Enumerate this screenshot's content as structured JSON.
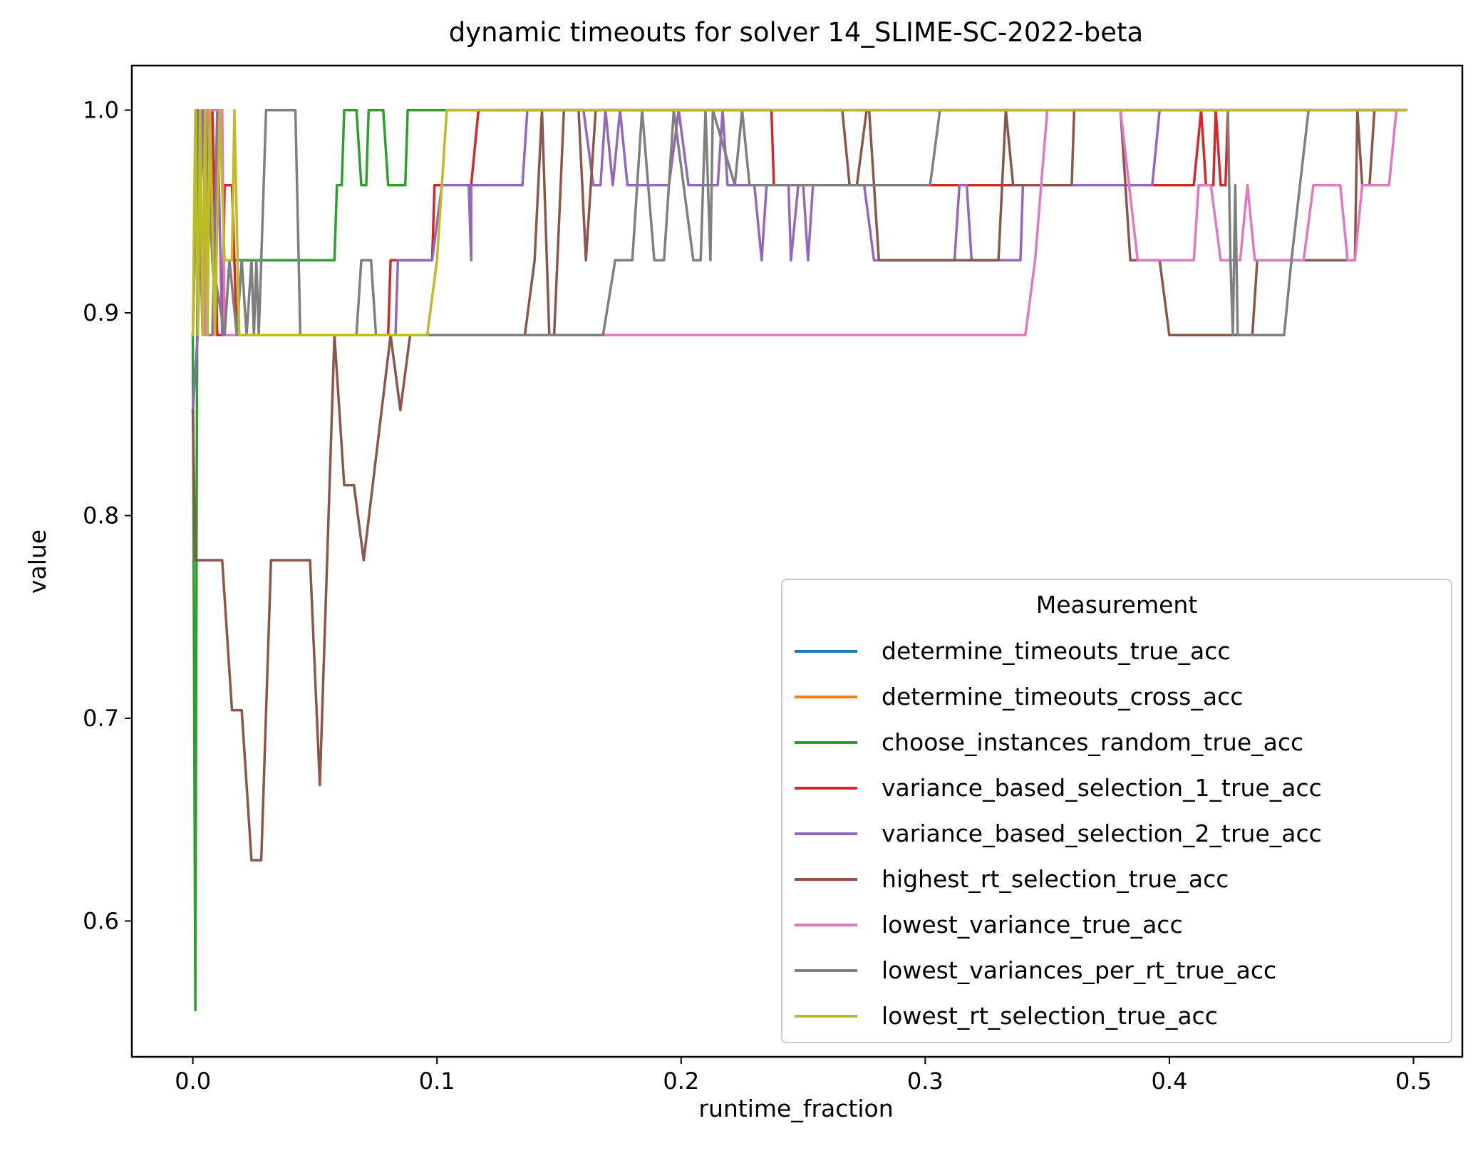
{
  "chart_data": {
    "type": "line",
    "title": "dynamic timeouts for solver 14_SLIME-SC-2022-beta",
    "xlabel": "runtime_fraction",
    "ylabel": "value",
    "xlim": [
      -0.025,
      0.52
    ],
    "ylim": [
      0.533,
      1.022
    ],
    "xticks": [
      0.0,
      0.1,
      0.2,
      0.3,
      0.4,
      0.5
    ],
    "xtick_labels": [
      "0.0",
      "0.1",
      "0.2",
      "0.3",
      "0.4",
      "0.5"
    ],
    "yticks": [
      0.6,
      0.7,
      0.8,
      0.9,
      1.0
    ],
    "ytick_labels": [
      "0.6",
      "0.7",
      "0.8",
      "0.9",
      "1.0"
    ],
    "legend": {
      "title": "Measurement",
      "position": "lower-right"
    },
    "grid": false,
    "series": [
      {
        "name": "determine_timeouts_true_acc",
        "color": "#1f77b4",
        "points": []
      },
      {
        "name": "determine_timeouts_cross_acc",
        "color": "#ff7f0e",
        "points": []
      },
      {
        "name": "choose_instances_random_true_acc",
        "color": "#2ca02c",
        "points": [
          [
            0,
            0.889
          ],
          [
            0.001,
            0.556
          ],
          [
            0.002,
            1.0
          ],
          [
            0.004,
            0.889
          ],
          [
            0.006,
            1.0
          ],
          [
            0.008,
            0.926
          ],
          [
            0.01,
            0.889
          ],
          [
            0.013,
            0.889
          ],
          [
            0.015,
            0.926
          ],
          [
            0.03,
            0.926
          ],
          [
            0.058,
            0.926
          ],
          [
            0.059,
            0.963
          ],
          [
            0.061,
            0.963
          ],
          [
            0.062,
            1.0
          ],
          [
            0.067,
            1.0
          ],
          [
            0.069,
            0.963
          ],
          [
            0.071,
            0.963
          ],
          [
            0.072,
            1.0
          ],
          [
            0.078,
            1.0
          ],
          [
            0.08,
            0.963
          ],
          [
            0.087,
            0.963
          ],
          [
            0.088,
            1.0
          ],
          [
            0.497,
            1.0
          ]
        ]
      },
      {
        "name": "variance_based_selection_1_true_acc",
        "color": "#d62728",
        "points": [
          [
            0,
            0.889
          ],
          [
            0.002,
            1.0
          ],
          [
            0.005,
            0.889
          ],
          [
            0.008,
            1.0
          ],
          [
            0.01,
            0.889
          ],
          [
            0.012,
            0.889
          ],
          [
            0.013,
            0.963
          ],
          [
            0.016,
            0.963
          ],
          [
            0.018,
            0.889
          ],
          [
            0.08,
            0.889
          ],
          [
            0.081,
            0.926
          ],
          [
            0.098,
            0.926
          ],
          [
            0.099,
            0.963
          ],
          [
            0.114,
            0.963
          ],
          [
            0.117,
            1.0
          ],
          [
            0.237,
            1.0
          ],
          [
            0.238,
            0.963
          ],
          [
            0.41,
            0.963
          ],
          [
            0.413,
            1.0
          ],
          [
            0.415,
            0.963
          ],
          [
            0.418,
            0.963
          ],
          [
            0.419,
            1.0
          ],
          [
            0.421,
            0.963
          ],
          [
            0.423,
            0.963
          ],
          [
            0.424,
            1.0
          ],
          [
            0.497,
            1.0
          ]
        ]
      },
      {
        "name": "variance_based_selection_2_true_acc",
        "color": "#9467bd",
        "points": [
          [
            0,
            0.852
          ],
          [
            0.002,
            0.889
          ],
          [
            0.004,
            1.0
          ],
          [
            0.006,
            0.889
          ],
          [
            0.008,
            0.889
          ],
          [
            0.01,
            1.0
          ],
          [
            0.012,
            0.889
          ],
          [
            0.083,
            0.889
          ],
          [
            0.084,
            0.926
          ],
          [
            0.098,
            0.926
          ],
          [
            0.102,
            0.963
          ],
          [
            0.113,
            0.963
          ],
          [
            0.114,
            0.926
          ],
          [
            0.114,
            0.963
          ],
          [
            0.135,
            0.963
          ],
          [
            0.137,
            1.0
          ],
          [
            0.16,
            1.0
          ],
          [
            0.164,
            0.963
          ],
          [
            0.167,
            0.963
          ],
          [
            0.169,
            1.0
          ],
          [
            0.172,
            0.963
          ],
          [
            0.175,
            1.0
          ],
          [
            0.178,
            0.963
          ],
          [
            0.195,
            0.963
          ],
          [
            0.199,
            1.0
          ],
          [
            0.203,
            0.963
          ],
          [
            0.215,
            0.963
          ],
          [
            0.217,
            1.0
          ],
          [
            0.219,
            0.963
          ],
          [
            0.23,
            0.963
          ],
          [
            0.233,
            0.926
          ],
          [
            0.235,
            0.963
          ],
          [
            0.244,
            0.963
          ],
          [
            0.245,
            0.926
          ],
          [
            0.248,
            0.963
          ],
          [
            0.25,
            0.963
          ],
          [
            0.252,
            0.926
          ],
          [
            0.254,
            0.963
          ],
          [
            0.275,
            0.963
          ],
          [
            0.279,
            0.926
          ],
          [
            0.312,
            0.926
          ],
          [
            0.314,
            0.963
          ],
          [
            0.317,
            0.963
          ],
          [
            0.319,
            0.926
          ],
          [
            0.339,
            0.926
          ],
          [
            0.34,
            0.963
          ],
          [
            0.393,
            0.963
          ],
          [
            0.396,
            1.0
          ],
          [
            0.497,
            1.0
          ]
        ]
      },
      {
        "name": "highest_rt_selection_true_acc",
        "color": "#8c564b",
        "points": [
          [
            0,
            0.852
          ],
          [
            0.001,
            0.778
          ],
          [
            0.012,
            0.778
          ],
          [
            0.016,
            0.704
          ],
          [
            0.02,
            0.704
          ],
          [
            0.024,
            0.63
          ],
          [
            0.028,
            0.63
          ],
          [
            0.032,
            0.778
          ],
          [
            0.048,
            0.778
          ],
          [
            0.052,
            0.667
          ],
          [
            0.058,
            0.889
          ],
          [
            0.062,
            0.815
          ],
          [
            0.066,
            0.815
          ],
          [
            0.07,
            0.778
          ],
          [
            0.081,
            0.889
          ],
          [
            0.085,
            0.852
          ],
          [
            0.089,
            0.889
          ],
          [
            0.136,
            0.889
          ],
          [
            0.14,
            0.926
          ],
          [
            0.143,
            1.0
          ],
          [
            0.146,
            0.889
          ],
          [
            0.148,
            0.889
          ],
          [
            0.152,
            1.0
          ],
          [
            0.158,
            1.0
          ],
          [
            0.161,
            0.926
          ],
          [
            0.165,
            1.0
          ],
          [
            0.266,
            1.0
          ],
          [
            0.269,
            0.963
          ],
          [
            0.272,
            0.963
          ],
          [
            0.276,
            1.0
          ],
          [
            0.277,
            1.0
          ],
          [
            0.281,
            0.926
          ],
          [
            0.33,
            0.926
          ],
          [
            0.333,
            1.0
          ],
          [
            0.336,
            0.963
          ],
          [
            0.36,
            0.963
          ],
          [
            0.361,
            1.0
          ],
          [
            0.38,
            1.0
          ],
          [
            0.384,
            0.926
          ],
          [
            0.396,
            0.926
          ],
          [
            0.4,
            0.889
          ],
          [
            0.434,
            0.889
          ],
          [
            0.436,
            0.926
          ],
          [
            0.476,
            0.926
          ],
          [
            0.477,
            1.0
          ],
          [
            0.479,
            0.963
          ],
          [
            0.482,
            0.963
          ],
          [
            0.484,
            1.0
          ],
          [
            0.497,
            1.0
          ]
        ]
      },
      {
        "name": "lowest_variance_true_acc",
        "color": "#e377c2",
        "points": [
          [
            0,
            0.889
          ],
          [
            0.002,
            1.0
          ],
          [
            0.005,
            0.889
          ],
          [
            0.006,
            1.0
          ],
          [
            0.012,
            1.0
          ],
          [
            0.013,
            0.889
          ],
          [
            0.17,
            0.889
          ],
          [
            0.175,
            0.889
          ],
          [
            0.341,
            0.889
          ],
          [
            0.345,
            0.926
          ],
          [
            0.35,
            1.0
          ],
          [
            0.38,
            1.0
          ],
          [
            0.387,
            0.926
          ],
          [
            0.41,
            0.926
          ],
          [
            0.412,
            0.963
          ],
          [
            0.417,
            0.963
          ],
          [
            0.421,
            0.926
          ],
          [
            0.429,
            0.926
          ],
          [
            0.432,
            0.963
          ],
          [
            0.435,
            0.926
          ],
          [
            0.455,
            0.926
          ],
          [
            0.459,
            0.963
          ],
          [
            0.47,
            0.963
          ],
          [
            0.473,
            0.926
          ],
          [
            0.476,
            0.926
          ],
          [
            0.479,
            0.963
          ],
          [
            0.49,
            0.963
          ],
          [
            0.493,
            1.0
          ],
          [
            0.497,
            1.0
          ]
        ]
      },
      {
        "name": "lowest_variances_per_rt_true_acc",
        "color": "#7f7f7f",
        "points": [
          [
            0,
            0.889
          ],
          [
            0.002,
            1.0
          ],
          [
            0.004,
            0.889
          ],
          [
            0.005,
            1.0
          ],
          [
            0.008,
            0.926
          ],
          [
            0.013,
            0.889
          ],
          [
            0.015,
            0.926
          ],
          [
            0.018,
            0.889
          ],
          [
            0.02,
            0.926
          ],
          [
            0.022,
            0.889
          ],
          [
            0.024,
            0.926
          ],
          [
            0.025,
            0.889
          ],
          [
            0.026,
            0.926
          ],
          [
            0.027,
            0.889
          ],
          [
            0.028,
            0.926
          ],
          [
            0.03,
            1.0
          ],
          [
            0.042,
            1.0
          ],
          [
            0.044,
            0.889
          ],
          [
            0.067,
            0.889
          ],
          [
            0.069,
            0.926
          ],
          [
            0.073,
            0.926
          ],
          [
            0.075,
            0.889
          ],
          [
            0.168,
            0.889
          ],
          [
            0.173,
            0.926
          ],
          [
            0.18,
            0.926
          ],
          [
            0.184,
            1.0
          ],
          [
            0.189,
            0.926
          ],
          [
            0.193,
            0.926
          ],
          [
            0.197,
            1.0
          ],
          [
            0.205,
            0.926
          ],
          [
            0.208,
            0.926
          ],
          [
            0.21,
            1.0
          ],
          [
            0.212,
            0.926
          ],
          [
            0.213,
            1.0
          ],
          [
            0.222,
            0.963
          ],
          [
            0.225,
            1.0
          ],
          [
            0.228,
            0.963
          ],
          [
            0.302,
            0.963
          ],
          [
            0.306,
            1.0
          ],
          [
            0.424,
            1.0
          ],
          [
            0.425,
            0.926
          ],
          [
            0.426,
            0.889
          ],
          [
            0.427,
            0.963
          ],
          [
            0.428,
            0.889
          ],
          [
            0.447,
            0.889
          ],
          [
            0.45,
            0.926
          ],
          [
            0.457,
            1.0
          ],
          [
            0.497,
            1.0
          ]
        ]
      },
      {
        "name": "lowest_rt_selection_true_acc",
        "color": "#bcbd22",
        "points": [
          [
            0,
            0.889
          ],
          [
            0.001,
            1.0
          ],
          [
            0.002,
            0.889
          ],
          [
            0.003,
            1.0
          ],
          [
            0.004,
            0.889
          ],
          [
            0.005,
            1.0
          ],
          [
            0.006,
            0.889
          ],
          [
            0.007,
            1.0
          ],
          [
            0.009,
            0.889
          ],
          [
            0.011,
            1.0
          ],
          [
            0.013,
            0.926
          ],
          [
            0.016,
            0.926
          ],
          [
            0.017,
            1.0
          ],
          [
            0.019,
            0.889
          ],
          [
            0.02,
            0.889
          ],
          [
            0.096,
            0.889
          ],
          [
            0.1,
            0.926
          ],
          [
            0.104,
            1.0
          ],
          [
            0.497,
            1.0
          ]
        ]
      }
    ]
  }
}
